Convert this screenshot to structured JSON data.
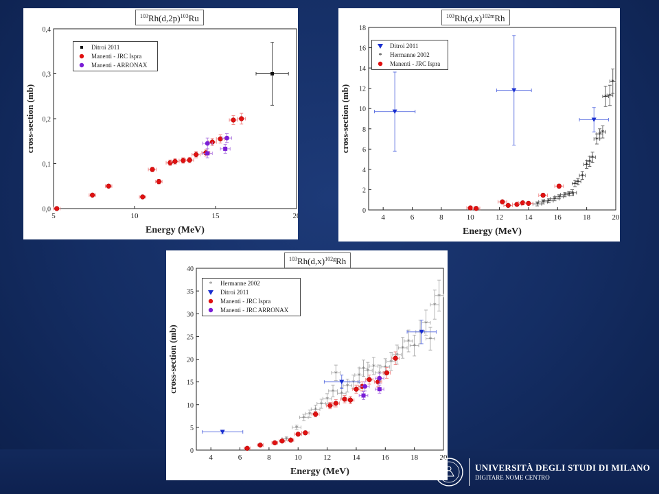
{
  "colors": {
    "background": "#142d63",
    "panel": "#ffffff",
    "black_series": "#111111",
    "gray_series": "#777777",
    "red_series": "#e01010",
    "purple_series": "#7a1ed6",
    "blue_series": "#1a2fd0",
    "red_errorbar": "#f08080",
    "blue_errorbar": "#5a6ee0",
    "purple_errorbar": "#b07ae0"
  },
  "footer": {
    "university": "UNIVERSITÀ DEGLI STUDI DI MILANO",
    "subtitle": "DIGITARE NOME CENTRO",
    "logo_icon": "university-seal-icon"
  },
  "chart_data": [
    {
      "type": "scatter",
      "title": {
        "pre": "103",
        "mid": "Rh(d,2p)",
        "sup": "103",
        "post": "Ru"
      },
      "xlabel": "Energy (MeV)",
      "ylabel": "cross-section (mb)",
      "xlim": [
        5,
        20
      ],
      "ylim": [
        0,
        0.4
      ],
      "xticks": [
        5,
        10,
        15,
        20
      ],
      "xtick_labels": [
        "5",
        "10",
        "15",
        "20"
      ],
      "yticks": [
        0.0,
        0.1,
        0.2,
        0.3,
        0.4
      ],
      "ytick_labels": [
        "0,0",
        "0,1",
        "0,2",
        "0,3",
        "0,4"
      ],
      "legend_position": "top-left",
      "series": [
        {
          "name": "Ditroi 2011",
          "marker": "square",
          "color": "#111111",
          "errcolor": "#333333",
          "points": [
            {
              "x": 18.5,
              "y": 0.3,
              "xerr": 1.0,
              "yerr": 0.07
            }
          ]
        },
        {
          "name": "Manenti - JRC Ispra",
          "marker": "redball",
          "color": "#e01010",
          "errcolor": "#f08080",
          "points": [
            {
              "x": 5.2,
              "y": 0.0,
              "xerr": 0.2,
              "yerr": 0.003
            },
            {
              "x": 7.4,
              "y": 0.03,
              "xerr": 0.2,
              "yerr": 0.003
            },
            {
              "x": 8.4,
              "y": 0.05,
              "xerr": 0.2,
              "yerr": 0.004
            },
            {
              "x": 10.5,
              "y": 0.026,
              "xerr": 0.2,
              "yerr": 0.003
            },
            {
              "x": 11.1,
              "y": 0.087,
              "xerr": 0.25,
              "yerr": 0.005
            },
            {
              "x": 11.5,
              "y": 0.06,
              "xerr": 0.2,
              "yerr": 0.005
            },
            {
              "x": 12.2,
              "y": 0.102,
              "xerr": 0.25,
              "yerr": 0.006
            },
            {
              "x": 12.5,
              "y": 0.105,
              "xerr": 0.25,
              "yerr": 0.006
            },
            {
              "x": 13.0,
              "y": 0.107,
              "xerr": 0.25,
              "yerr": 0.006
            },
            {
              "x": 13.4,
              "y": 0.108,
              "xerr": 0.25,
              "yerr": 0.006
            },
            {
              "x": 13.8,
              "y": 0.12,
              "xerr": 0.25,
              "yerr": 0.007
            },
            {
              "x": 14.4,
              "y": 0.124,
              "xerr": 0.25,
              "yerr": 0.007
            },
            {
              "x": 14.8,
              "y": 0.148,
              "xerr": 0.25,
              "yerr": 0.008
            },
            {
              "x": 15.3,
              "y": 0.155,
              "xerr": 0.25,
              "yerr": 0.009
            },
            {
              "x": 16.1,
              "y": 0.197,
              "xerr": 0.25,
              "yerr": 0.01
            },
            {
              "x": 16.6,
              "y": 0.2,
              "xerr": 0.25,
              "yerr": 0.012
            }
          ]
        },
        {
          "name": "Manenti - ARRONAX",
          "marker": "purpleball",
          "color": "#7a1ed6",
          "errcolor": "#b07ae0",
          "points": [
            {
              "x": 14.5,
              "y": 0.145,
              "xerr": 0.3,
              "yerr": 0.012
            },
            {
              "x": 15.7,
              "y": 0.157,
              "xerr": 0.3,
              "yerr": 0.01
            }
          ]
        },
        {
          "name": "",
          "marker": "purplesquare",
          "color": "#7a1ed6",
          "errcolor": "#b07ae0",
          "points": [
            {
              "x": 14.5,
              "y": 0.123,
              "xerr": 0.3,
              "yerr": 0.01
            },
            {
              "x": 15.6,
              "y": 0.133,
              "xerr": 0.3,
              "yerr": 0.01
            }
          ]
        }
      ]
    },
    {
      "type": "scatter",
      "title": {
        "pre": "103",
        "mid": "Rh(d,x)",
        "sup": "102m",
        "post": "Rh"
      },
      "xlabel": "Energy (MeV)",
      "ylabel": "cross-section (mb)",
      "xlim": [
        3,
        20
      ],
      "ylim": [
        0,
        18
      ],
      "xticks": [
        4,
        6,
        8,
        10,
        12,
        14,
        16,
        18,
        20
      ],
      "xtick_labels": [
        "4",
        "6",
        "8",
        "10",
        "12",
        "14",
        "16",
        "18",
        "20"
      ],
      "yticks": [
        0,
        2,
        4,
        6,
        8,
        10,
        12,
        14,
        16,
        18
      ],
      "ytick_labels": [
        "0",
        "2",
        "4",
        "6",
        "8",
        "10",
        "12",
        "14",
        "16",
        "18"
      ],
      "legend_position": "top-left",
      "series": [
        {
          "name": "Ditroi 2011",
          "marker": "triangle",
          "color": "#1a2fd0",
          "errcolor": "#5a6ee0",
          "points": [
            {
              "x": 4.8,
              "y": 9.7,
              "xerr": 1.4,
              "yerr": 3.9
            },
            {
              "x": 13.0,
              "y": 11.8,
              "xerr": 1.2,
              "yerr": 5.4
            },
            {
              "x": 18.5,
              "y": 8.9,
              "xerr": 1.0,
              "yerr": 1.2
            }
          ]
        },
        {
          "name": "Hermanne 2002",
          "marker": "star",
          "color": "#111111",
          "errcolor": "#555555",
          "points": [
            {
              "x": 14.6,
              "y": 0.6,
              "xerr": 0.3,
              "yerr": 0.2
            },
            {
              "x": 15.0,
              "y": 0.8,
              "xerr": 0.3,
              "yerr": 0.2
            },
            {
              "x": 15.4,
              "y": 0.9,
              "xerr": 0.3,
              "yerr": 0.2
            },
            {
              "x": 15.8,
              "y": 1.1,
              "xerr": 0.3,
              "yerr": 0.2
            },
            {
              "x": 16.1,
              "y": 1.3,
              "xerr": 0.3,
              "yerr": 0.2
            },
            {
              "x": 16.5,
              "y": 1.5,
              "xerr": 0.3,
              "yerr": 0.2
            },
            {
              "x": 16.8,
              "y": 1.6,
              "xerr": 0.3,
              "yerr": 0.2
            },
            {
              "x": 17.0,
              "y": 1.7,
              "xerr": 0.3,
              "yerr": 0.3
            },
            {
              "x": 17.2,
              "y": 2.6,
              "xerr": 0.2,
              "yerr": 0.3
            },
            {
              "x": 17.4,
              "y": 2.8,
              "xerr": 0.2,
              "yerr": 0.3
            },
            {
              "x": 17.7,
              "y": 3.4,
              "xerr": 0.2,
              "yerr": 0.4
            },
            {
              "x": 18.0,
              "y": 4.5,
              "xerr": 0.2,
              "yerr": 0.4
            },
            {
              "x": 18.2,
              "y": 4.8,
              "xerr": 0.2,
              "yerr": 0.5
            },
            {
              "x": 18.4,
              "y": 5.2,
              "xerr": 0.2,
              "yerr": 0.5
            },
            {
              "x": 18.7,
              "y": 7.0,
              "xerr": 0.2,
              "yerr": 0.5
            },
            {
              "x": 18.9,
              "y": 7.5,
              "xerr": 0.2,
              "yerr": 0.5
            },
            {
              "x": 19.1,
              "y": 7.7,
              "xerr": 0.2,
              "yerr": 0.6
            },
            {
              "x": 19.3,
              "y": 11.2,
              "xerr": 0.2,
              "yerr": 1.0
            },
            {
              "x": 19.6,
              "y": 11.3,
              "xerr": 0.2,
              "yerr": 1.0
            },
            {
              "x": 19.8,
              "y": 12.7,
              "xerr": 0.2,
              "yerr": 1.2
            }
          ]
        },
        {
          "name": "Manenti - JRC Ispra",
          "marker": "redball",
          "color": "#e01010",
          "errcolor": "#f08080",
          "points": [
            {
              "x": 10.0,
              "y": 0.2,
              "xerr": 0.25,
              "yerr": 0.05
            },
            {
              "x": 10.4,
              "y": 0.15,
              "xerr": 0.25,
              "yerr": 0.05
            },
            {
              "x": 12.2,
              "y": 0.8,
              "xerr": 0.3,
              "yerr": 0.1
            },
            {
              "x": 12.6,
              "y": 0.45,
              "xerr": 0.3,
              "yerr": 0.08
            },
            {
              "x": 13.2,
              "y": 0.55,
              "xerr": 0.3,
              "yerr": 0.1
            },
            {
              "x": 13.6,
              "y": 0.7,
              "xerr": 0.3,
              "yerr": 0.1
            },
            {
              "x": 14.0,
              "y": 0.65,
              "xerr": 0.3,
              "yerr": 0.1
            },
            {
              "x": 15.0,
              "y": 1.45,
              "xerr": 0.3,
              "yerr": 0.15
            },
            {
              "x": 16.1,
              "y": 2.35,
              "xerr": 0.3,
              "yerr": 0.2
            }
          ]
        }
      ]
    },
    {
      "type": "scatter",
      "title": {
        "pre": "103",
        "mid": "Rh(d,x)",
        "sup": "102g",
        "post": "Rh"
      },
      "xlabel": "Energy (MeV)",
      "ylabel": "cross-section (mb)",
      "xlim": [
        3,
        20
      ],
      "ylim": [
        0,
        40
      ],
      "xticks": [
        4,
        6,
        8,
        10,
        12,
        14,
        16,
        18,
        20
      ],
      "xtick_labels": [
        "4",
        "6",
        "8",
        "10",
        "12",
        "14",
        "16",
        "18",
        "20"
      ],
      "yticks": [
        0,
        5,
        10,
        15,
        20,
        25,
        30,
        35,
        40
      ],
      "ytick_labels": [
        "0",
        "5",
        "10",
        "15",
        "20",
        "25",
        "30",
        "35",
        "40"
      ],
      "legend_position": "top-left",
      "series": [
        {
          "name": "Hermanne 2002",
          "marker": "star",
          "color": "#777777",
          "errcolor": "#aaaaaa",
          "points": [
            {
              "x": 9.2,
              "y": 2.5,
              "xerr": 0.3,
              "yerr": 0.4
            },
            {
              "x": 9.9,
              "y": 5.0,
              "xerr": 0.3,
              "yerr": 0.5
            },
            {
              "x": 10.4,
              "y": 7.2,
              "xerr": 0.3,
              "yerr": 0.7
            },
            {
              "x": 10.8,
              "y": 8.0,
              "xerr": 0.3,
              "yerr": 0.8
            },
            {
              "x": 11.2,
              "y": 9.0,
              "xerr": 0.3,
              "yerr": 0.9
            },
            {
              "x": 11.6,
              "y": 10.2,
              "xerr": 0.3,
              "yerr": 1.0
            },
            {
              "x": 12.0,
              "y": 11.3,
              "xerr": 0.3,
              "yerr": 1.1
            },
            {
              "x": 12.4,
              "y": 13.0,
              "xerr": 0.3,
              "yerr": 1.3
            },
            {
              "x": 12.6,
              "y": 17.0,
              "xerr": 0.3,
              "yerr": 1.7
            },
            {
              "x": 13.0,
              "y": 12.5,
              "xerr": 0.3,
              "yerr": 1.3
            },
            {
              "x": 13.4,
              "y": 14.2,
              "xerr": 0.3,
              "yerr": 1.4
            },
            {
              "x": 13.8,
              "y": 15.0,
              "xerr": 0.3,
              "yerr": 1.5
            },
            {
              "x": 14.2,
              "y": 16.5,
              "xerr": 0.3,
              "yerr": 1.6
            },
            {
              "x": 14.5,
              "y": 18.0,
              "xerr": 0.3,
              "yerr": 1.8
            },
            {
              "x": 14.8,
              "y": 17.5,
              "xerr": 0.3,
              "yerr": 1.8
            },
            {
              "x": 15.2,
              "y": 18.5,
              "xerr": 0.3,
              "yerr": 1.9
            },
            {
              "x": 15.6,
              "y": 17.0,
              "xerr": 0.3,
              "yerr": 1.7
            },
            {
              "x": 16.0,
              "y": 18.3,
              "xerr": 0.3,
              "yerr": 1.8
            },
            {
              "x": 16.4,
              "y": 19.5,
              "xerr": 0.3,
              "yerr": 2.0
            },
            {
              "x": 16.8,
              "y": 21.0,
              "xerr": 0.3,
              "yerr": 2.1
            },
            {
              "x": 17.2,
              "y": 22.5,
              "xerr": 0.3,
              "yerr": 2.3
            },
            {
              "x": 17.6,
              "y": 24.0,
              "xerr": 0.3,
              "yerr": 2.4
            },
            {
              "x": 18.0,
              "y": 23.0,
              "xerr": 0.3,
              "yerr": 2.3
            },
            {
              "x": 18.4,
              "y": 26.0,
              "xerr": 0.3,
              "yerr": 2.6
            },
            {
              "x": 18.8,
              "y": 28.0,
              "xerr": 0.3,
              "yerr": 2.8
            },
            {
              "x": 19.1,
              "y": 24.5,
              "xerr": 0.3,
              "yerr": 2.5
            },
            {
              "x": 19.4,
              "y": 32.0,
              "xerr": 0.3,
              "yerr": 3.2
            },
            {
              "x": 19.7,
              "y": 34.0,
              "xerr": 0.3,
              "yerr": 3.4
            }
          ]
        },
        {
          "name": "Ditroi 2011",
          "marker": "triangle",
          "color": "#1a2fd0",
          "errcolor": "#5a6ee0",
          "points": [
            {
              "x": 4.8,
              "y": 4.0,
              "xerr": 1.4,
              "yerr": 0.4
            },
            {
              "x": 13.0,
              "y": 15.0,
              "xerr": 1.2,
              "yerr": 1.5
            },
            {
              "x": 18.5,
              "y": 26.0,
              "xerr": 1.0,
              "yerr": 2.6
            }
          ]
        },
        {
          "name": "Manenti - JRC Ispra",
          "marker": "redball",
          "color": "#e01010",
          "errcolor": "#f08080",
          "points": [
            {
              "x": 6.5,
              "y": 0.4,
              "xerr": 0.2,
              "yerr": 0.1
            },
            {
              "x": 7.4,
              "y": 1.1,
              "xerr": 0.2,
              "yerr": 0.2
            },
            {
              "x": 8.4,
              "y": 1.6,
              "xerr": 0.2,
              "yerr": 0.2
            },
            {
              "x": 8.9,
              "y": 2.0,
              "xerr": 0.2,
              "yerr": 0.2
            },
            {
              "x": 9.5,
              "y": 2.2,
              "xerr": 0.2,
              "yerr": 0.3
            },
            {
              "x": 10.0,
              "y": 3.5,
              "xerr": 0.25,
              "yerr": 0.4
            },
            {
              "x": 10.5,
              "y": 3.8,
              "xerr": 0.25,
              "yerr": 0.4
            },
            {
              "x": 11.2,
              "y": 7.9,
              "xerr": 0.25,
              "yerr": 0.6
            },
            {
              "x": 12.2,
              "y": 9.8,
              "xerr": 0.25,
              "yerr": 0.7
            },
            {
              "x": 12.6,
              "y": 10.3,
              "xerr": 0.25,
              "yerr": 0.8
            },
            {
              "x": 13.2,
              "y": 11.2,
              "xerr": 0.25,
              "yerr": 0.8
            },
            {
              "x": 13.6,
              "y": 11.0,
              "xerr": 0.25,
              "yerr": 0.8
            },
            {
              "x": 14.0,
              "y": 13.4,
              "xerr": 0.25,
              "yerr": 0.9
            },
            {
              "x": 14.4,
              "y": 14.0,
              "xerr": 0.25,
              "yerr": 1.0
            },
            {
              "x": 14.9,
              "y": 15.5,
              "xerr": 0.25,
              "yerr": 1.0
            },
            {
              "x": 15.5,
              "y": 15.0,
              "xerr": 0.25,
              "yerr": 1.1
            },
            {
              "x": 16.1,
              "y": 17.0,
              "xerr": 0.25,
              "yerr": 1.2
            },
            {
              "x": 16.7,
              "y": 20.2,
              "xerr": 0.25,
              "yerr": 1.4
            }
          ]
        },
        {
          "name": "Manenti - JRC ARRONAX",
          "marker": "purpleball",
          "color": "#7a1ed6",
          "errcolor": "#b07ae0",
          "points": [
            {
              "x": 14.6,
              "y": 14.0,
              "xerr": 0.3,
              "yerr": 1.0
            },
            {
              "x": 15.6,
              "y": 15.8,
              "xerr": 0.3,
              "yerr": 1.1
            }
          ]
        },
        {
          "name": "",
          "marker": "purplesquare",
          "color": "#7a1ed6",
          "errcolor": "#b07ae0",
          "points": [
            {
              "x": 14.5,
              "y": 12.0,
              "xerr": 0.3,
              "yerr": 0.9
            },
            {
              "x": 15.6,
              "y": 13.4,
              "xerr": 0.3,
              "yerr": 0.9
            }
          ]
        }
      ]
    }
  ]
}
